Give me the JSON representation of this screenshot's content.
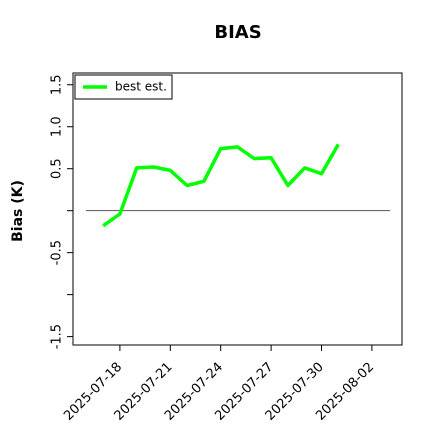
{
  "chart_data": {
    "type": "line",
    "title": "BIAS",
    "y_label": "Bias (K)",
    "x": [
      "2025-07-17",
      "2025-07-18",
      "2025-07-19",
      "2025-07-20",
      "2025-07-21",
      "2025-07-22",
      "2025-07-23",
      "2025-07-24",
      "2025-07-25",
      "2025-07-26",
      "2025-07-27",
      "2025-07-28",
      "2025-07-29",
      "2025-07-30",
      "2025-07-31"
    ],
    "series": [
      {
        "name": "best est.",
        "color": "#00ff00",
        "values": [
          -0.18,
          -0.04,
          0.51,
          0.52,
          0.48,
          0.3,
          0.35,
          0.74,
          0.76,
          0.62,
          0.63,
          0.3,
          0.51,
          0.44,
          0.79
        ]
      }
    ],
    "xlim": [
      "2025-07-15T05:00",
      "2025-08-03T19:00"
    ],
    "xticks": [
      "2025-07-18",
      "2025-07-21",
      "2025-07-24",
      "2025-07-27",
      "2025-07-30",
      "2025-08-02"
    ],
    "ylim": [
      -1.6,
      1.64
    ],
    "yticks": [
      -1.5,
      -0.5,
      0.5,
      {
        "value": 1,
        "label": "1.0"
      },
      1.5
    ],
    "yticks_unlabeled": [
      -1,
      0
    ],
    "hline": 0,
    "legend": "upper left"
  }
}
